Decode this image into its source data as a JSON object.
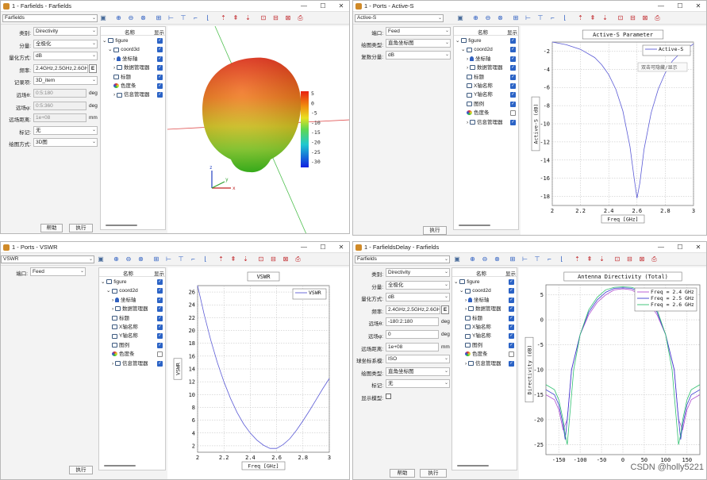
{
  "common": {
    "show_header": "显示",
    "name_header": "名称",
    "execute_label": "执行",
    "help_label": "帮助",
    "icons": [
      "camera-icon",
      "zoom-in-icon",
      "zoom-out-icon",
      "zoom-fit-icon",
      "axis-add-icon",
      "axis-x-icon",
      "axis-y-icon",
      "axis-icon",
      "frame-icon",
      "arrow-up-icon",
      "arrow-top-icon",
      "arrow-down-icon",
      "export-icon",
      "copy-icon",
      "chart-icon",
      "print-icon"
    ]
  },
  "win_farfields": {
    "title": "1 - Farfields - Farfields",
    "combo": "Farfields",
    "params": [
      {
        "label": "类别:",
        "value": "Directivity"
      },
      {
        "label": "分量:",
        "value": "全极化"
      },
      {
        "label": "量化方式:",
        "value": "dB"
      },
      {
        "label": "频率:",
        "value": "2.4GHz,2.5GHz,2.6GHz"
      },
      {
        "label": "记录项:",
        "value": "3D_item"
      },
      {
        "label": "远场θ:",
        "value": "0:5:180",
        "unit": "deg"
      },
      {
        "label": "远场φ:",
        "value": "0:5:360",
        "unit": "deg"
      },
      {
        "label": "远场距离:",
        "value": "1e+08",
        "unit": "mm"
      },
      {
        "label": "标记:",
        "value": "无"
      },
      {
        "label": "绘图方式:",
        "value": "3D图"
      }
    ],
    "tree": [
      "figure",
      "coord3d",
      "坐标轴",
      "数据管理器",
      "标题",
      "色度条",
      "信息管理器"
    ],
    "colorbar_labels": [
      "5",
      "0",
      "-5",
      "-10",
      "-15",
      "-20",
      "-25",
      "-30"
    ],
    "axis_labels": {
      "x": "x",
      "y": "y",
      "z": "z"
    }
  },
  "win_active": {
    "title": "1 - Ports - Active-S",
    "combo": "Active-S",
    "params": [
      {
        "label": "端口:",
        "value": "Feed"
      },
      {
        "label": "绘图类型:",
        "value": "直角坐标图"
      },
      {
        "label": "复数分量:",
        "value": "dB"
      }
    ],
    "tree": [
      "figure",
      "coord2d",
      "坐标轴",
      "数据管理器",
      "标题",
      "X轴名称",
      "Y轴名称",
      "图例",
      "色度条",
      "信息管理器"
    ],
    "tooltip": "双击可隐藏/显示",
    "chart_data": {
      "type": "line",
      "title": "Active-S Parameter",
      "xlabel": "Freq [GHz]",
      "ylabel": "Active-S (dB)",
      "xlim": [
        2,
        3
      ],
      "ylim": [
        -19,
        -1
      ],
      "xticks": [
        "2",
        "2.2",
        "2.4",
        "2.6",
        "2.8",
        "3"
      ],
      "yticks": [
        "-2",
        "-4",
        "-6",
        "-8",
        "-10",
        "-12",
        "-14",
        "-16",
        "-18"
      ],
      "legend_position": "top-right",
      "series": [
        {
          "name": "Active-S",
          "color": "#5b5bd6",
          "x": [
            2.0,
            2.1,
            2.2,
            2.3,
            2.35,
            2.4,
            2.45,
            2.5,
            2.55,
            2.58,
            2.6,
            2.62,
            2.65,
            2.7,
            2.75,
            2.8,
            2.85,
            2.9,
            3.0
          ],
          "y": [
            -1.0,
            -1.3,
            -1.8,
            -2.7,
            -3.5,
            -4.6,
            -6.2,
            -8.6,
            -12.5,
            -16.0,
            -18.2,
            -16.5,
            -12.8,
            -8.8,
            -6.2,
            -4.4,
            -3.1,
            -2.3,
            -1.2
          ]
        }
      ]
    }
  },
  "win_vswr": {
    "title": "1 - Ports - VSWR",
    "combo": "VSWR",
    "params": [
      {
        "label": "端口:",
        "value": "Feed"
      }
    ],
    "tree": [
      "figure",
      "coord2d",
      "坐标轴",
      "数据管理器",
      "标题",
      "X轴名称",
      "Y轴名称",
      "图例",
      "色度条",
      "信息管理器"
    ],
    "chart_data": {
      "type": "line",
      "title": "VSWR",
      "xlabel": "Freq [GHz]",
      "ylabel": "VSWR",
      "xlim": [
        2,
        3
      ],
      "ylim": [
        1,
        27
      ],
      "xticks": [
        "2",
        "2.2",
        "2.4",
        "2.6",
        "2.8",
        "3"
      ],
      "yticks": [
        "2",
        "4",
        "6",
        "8",
        "10",
        "12",
        "14",
        "16",
        "18",
        "20",
        "22",
        "24",
        "26"
      ],
      "legend_position": "top-right",
      "series": [
        {
          "name": "VSWR",
          "color": "#5b5bd6",
          "x": [
            2.0,
            2.05,
            2.1,
            2.15,
            2.2,
            2.25,
            2.3,
            2.35,
            2.4,
            2.45,
            2.5,
            2.55,
            2.6,
            2.65,
            2.7,
            2.75,
            2.8,
            2.85,
            2.9,
            2.95,
            3.0
          ],
          "y": [
            27.0,
            22.5,
            18.5,
            15.0,
            12.0,
            9.4,
            7.2,
            5.4,
            4.0,
            2.9,
            2.1,
            1.6,
            1.6,
            2.2,
            3.1,
            4.4,
            5.9,
            7.5,
            9.2,
            10.9,
            12.5
          ]
        }
      ]
    }
  },
  "win_delay": {
    "title": "1 - FarfieldsDelay - Farfields",
    "combo": "Farfields",
    "params": [
      {
        "label": "类别:",
        "value": "Directivity"
      },
      {
        "label": "分量:",
        "value": "全极化"
      },
      {
        "label": "量化方式:",
        "value": "dB"
      },
      {
        "label": "频率:",
        "value": "2.4GHz,2.5GHz,2.6GHz"
      },
      {
        "label": "远场θ:",
        "value": "-180:2:180",
        "unit": "deg"
      },
      {
        "label": "远场φ:",
        "value": "0",
        "unit": "deg"
      },
      {
        "label": "远场距离:",
        "value": "1e+08",
        "unit": "mm"
      },
      {
        "label": "球坐标系模:",
        "value": "ISO"
      },
      {
        "label": "绘图类型:",
        "value": "直角坐标图"
      },
      {
        "label": "标记:",
        "value": "无"
      },
      {
        "label": "显示模型:",
        "value": ""
      }
    ],
    "tree": [
      "figure",
      "coord2d",
      "坐标轴",
      "数据管理器",
      "标题",
      "X轴名称",
      "Y轴名称",
      "图例",
      "色度条",
      "信息管理器"
    ],
    "watermark": "CSDN @holly5221",
    "chart_data": {
      "type": "line",
      "title": "Antenna Directivity (Total)",
      "xlabel": "",
      "ylabel": "Directivity (dB)",
      "xlim": [
        -180,
        180
      ],
      "ylim": [
        -27,
        7
      ],
      "xticks": [
        "-150",
        "-100",
        "-50",
        "0",
        "50",
        "100",
        "150"
      ],
      "yticks": [
        "5",
        "0",
        "-5",
        "-10",
        "-15",
        "-20",
        "-25"
      ],
      "legend_position": "top-right",
      "series": [
        {
          "name": "Freq = 2.4 GHz",
          "color": "#b050d0",
          "x": [
            -180,
            -160,
            -150,
            -140,
            -130,
            -120,
            -100,
            -80,
            -60,
            -40,
            -20,
            0,
            20,
            40,
            60,
            80,
            100,
            120,
            130,
            140,
            150,
            160,
            180
          ],
          "y": [
            -15,
            -16,
            -18,
            -22,
            -20,
            -10,
            -3,
            1,
            3.5,
            5,
            6,
            6.2,
            6,
            5,
            3.5,
            1,
            -3,
            -10,
            -20,
            -22,
            -18,
            -16,
            -15
          ]
        },
        {
          "name": "Freq = 2.5 GHz",
          "color": "#3a3ad0",
          "x": [
            -180,
            -160,
            -150,
            -140,
            -135,
            -128,
            -120,
            -100,
            -80,
            -60,
            -40,
            -20,
            0,
            20,
            40,
            60,
            80,
            100,
            120,
            128,
            135,
            140,
            150,
            160,
            180
          ],
          "y": [
            -14,
            -15,
            -17,
            -21,
            -24,
            -18,
            -10,
            -3,
            1.5,
            4,
            5.5,
            6.3,
            6.4,
            6.3,
            5.5,
            4,
            1.5,
            -3,
            -10,
            -18,
            -24,
            -21,
            -17,
            -15,
            -14
          ]
        },
        {
          "name": "Freq = 2.6 GHz",
          "color": "#30c070",
          "x": [
            -180,
            -160,
            -150,
            -140,
            -135,
            -130,
            -125,
            -115,
            -100,
            -80,
            -60,
            -40,
            -20,
            0,
            20,
            40,
            60,
            80,
            100,
            115,
            125,
            130,
            135,
            140,
            150,
            160,
            180
          ],
          "y": [
            -13,
            -14,
            -16,
            -20,
            -23,
            -25,
            -20,
            -10,
            -3,
            2,
            4.5,
            6,
            6.5,
            6.6,
            6.5,
            6,
            4.5,
            2,
            -3,
            -10,
            -20,
            -25,
            -23,
            -20,
            -16,
            -14,
            -13
          ]
        }
      ]
    }
  }
}
